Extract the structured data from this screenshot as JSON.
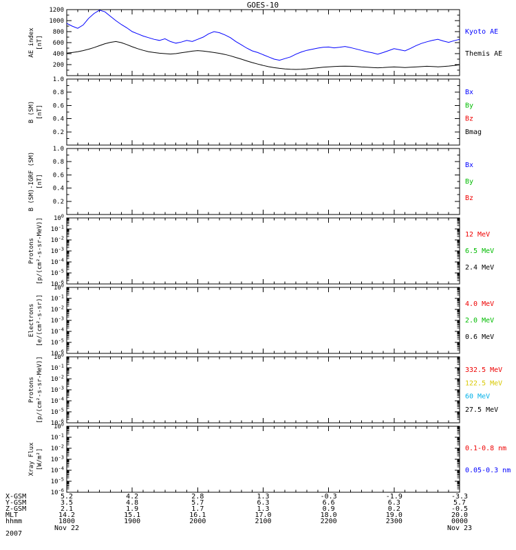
{
  "title": "GOES-10",
  "chart_data": [
    {
      "panel": "ae-index",
      "type": "line",
      "yscale": "linear",
      "ylim": [
        0,
        1200
      ],
      "yticks": [
        "200",
        "400",
        "600",
        "800",
        "1000",
        "1200"
      ],
      "ylabel": [
        "AE index",
        "[nT]"
      ],
      "legend": [
        {
          "label": "Kyoto AE",
          "color": "#0000ff"
        },
        {
          "label": "Themis AE",
          "color": "#000000"
        }
      ],
      "series": [
        {
          "name": "kyoto-ae",
          "color": "#0000ff",
          "y": [
            950,
            900,
            860,
            920,
            1040,
            1130,
            1190,
            1160,
            1080,
            1000,
            930,
            870,
            800,
            760,
            720,
            690,
            660,
            640,
            670,
            620,
            590,
            610,
            640,
            620,
            660,
            700,
            760,
            800,
            780,
            740,
            690,
            620,
            560,
            500,
            450,
            420,
            380,
            340,
            300,
            280,
            310,
            340,
            390,
            430,
            460,
            480,
            500,
            515,
            520,
            505,
            515,
            530,
            510,
            485,
            460,
            435,
            415,
            390,
            420,
            455,
            490,
            470,
            450,
            495,
            545,
            585,
            615,
            640,
            660,
            630,
            605,
            635,
            660
          ]
        },
        {
          "name": "themis-ae",
          "color": "#000000",
          "y": [
            410,
            420,
            435,
            455,
            480,
            510,
            545,
            580,
            605,
            620,
            600,
            565,
            525,
            490,
            460,
            435,
            420,
            408,
            400,
            392,
            400,
            415,
            430,
            445,
            455,
            448,
            435,
            420,
            405,
            385,
            360,
            330,
            300,
            268,
            238,
            210,
            185,
            162,
            145,
            132,
            122,
            115,
            112,
            115,
            122,
            132,
            142,
            152,
            160,
            166,
            170,
            172,
            170,
            165,
            158,
            152,
            147,
            143,
            146,
            152,
            158,
            154,
            148,
            152,
            158,
            164,
            170,
            166,
            160,
            166,
            174,
            184,
            196
          ]
        }
      ]
    },
    {
      "panel": "b-sm",
      "type": "line",
      "yscale": "linear",
      "ylim": [
        0,
        1
      ],
      "yticks": [
        "0.2",
        "0.4",
        "0.6",
        "0.8",
        "1.0"
      ],
      "ylabel": [
        "B (SM)",
        "[nT]"
      ],
      "legend": [
        {
          "label": "Bx",
          "color": "#0000ff"
        },
        {
          "label": "By",
          "color": "#00bb00"
        },
        {
          "label": "Bz",
          "color": "#ee0000"
        },
        {
          "label": "Bmag",
          "color": "#000000"
        }
      ],
      "series": []
    },
    {
      "panel": "b-sm-igrf",
      "type": "line",
      "yscale": "linear",
      "ylim": [
        0,
        1
      ],
      "yticks": [
        "0.2",
        "0.4",
        "0.6",
        "0.8",
        "1.0"
      ],
      "ylabel": [
        "B (SM)-IGRF (SM)",
        "[nT]"
      ],
      "legend": [
        {
          "label": "Bx",
          "color": "#0000ff"
        },
        {
          "label": "By",
          "color": "#00bb00"
        },
        {
          "label": "Bz",
          "color": "#ee0000"
        }
      ],
      "series": []
    },
    {
      "panel": "protons-low",
      "type": "line",
      "yscale": "log",
      "ytick_exponents": [
        0,
        -1,
        -2,
        -3,
        -4,
        -5,
        -6
      ],
      "ylabel": [
        "Protons",
        "[p/(cm²-s-sr-MeV)]"
      ],
      "legend": [
        {
          "label": "12 MeV",
          "color": "#ee0000"
        },
        {
          "label": "6.5 MeV",
          "color": "#00bb00"
        },
        {
          "label": "2.4 MeV",
          "color": "#000000"
        }
      ],
      "series": []
    },
    {
      "panel": "electrons",
      "type": "line",
      "yscale": "log",
      "ytick_exponents": [
        0,
        -1,
        -2,
        -3,
        -4,
        -5,
        -6
      ],
      "ylabel": [
        "Electrons",
        "[e/(cm²-s-sr)]"
      ],
      "legend": [
        {
          "label": "4.0 MeV",
          "color": "#ee0000"
        },
        {
          "label": "2.0 MeV",
          "color": "#00bb00"
        },
        {
          "label": "0.6 MeV",
          "color": "#000000"
        }
      ],
      "series": []
    },
    {
      "panel": "protons-high",
      "type": "line",
      "yscale": "log",
      "ytick_exponents": [
        0,
        -1,
        -2,
        -3,
        -4,
        -5,
        -6
      ],
      "ylabel": [
        "Protons",
        "[p/(cm²-s-sr-MeV)]"
      ],
      "legend": [
        {
          "label": "332.5 MeV",
          "color": "#ee0000"
        },
        {
          "label": "122.5 MeV",
          "color": "#d8c800"
        },
        {
          "label": "60 MeV",
          "color": "#00b0e8"
        },
        {
          "label": "27.5 MeV",
          "color": "#000000"
        }
      ],
      "series": []
    },
    {
      "panel": "xray-flux",
      "type": "line",
      "yscale": "log",
      "ytick_exponents": [
        0,
        -1,
        -2,
        -3,
        -4,
        -5,
        -6
      ],
      "ylabel": [
        "Xray Flux",
        "[W/m²]"
      ],
      "legend": [
        {
          "label": "0.1-0.8 nm",
          "color": "#ee0000"
        },
        {
          "label": "0.05-0.3 nm",
          "color": "#0000ff"
        }
      ],
      "series": []
    }
  ],
  "xaxis": {
    "major_tick_count": 7,
    "bottom_rows": [
      {
        "label": "X-GSM",
        "values": [
          "5.2",
          "4.2",
          "2.8",
          "1.3",
          "-0.3",
          "-1.9",
          "-3.3"
        ]
      },
      {
        "label": "Y-GSM",
        "values": [
          "3.5",
          "4.8",
          "5.7",
          "6.3",
          "6.6",
          "6.3",
          "5.7"
        ]
      },
      {
        "label": "Z-GSM",
        "values": [
          "2.1",
          "1.9",
          "1.7",
          "1.3",
          "0.9",
          "0.2",
          "-0.5"
        ]
      },
      {
        "label": "MLT",
        "values": [
          "14.2",
          "15.1",
          "16.1",
          "17.0",
          "18.0",
          "19.0",
          "20.0"
        ]
      },
      {
        "label": "hhmm",
        "values": [
          "1800",
          "1900",
          "2000",
          "2100",
          "2200",
          "2300",
          "0000"
        ]
      },
      {
        "label": "2007",
        "values": [
          "Nov 22",
          "",
          "",
          "",
          "",
          "",
          "Nov 23"
        ]
      }
    ]
  }
}
